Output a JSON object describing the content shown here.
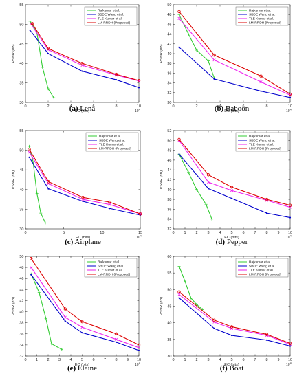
{
  "colors": {
    "rajkumar": "#33cc33",
    "sbde": "#0000cc",
    "tle": "#ee22ee",
    "lm": "#dd0000"
  },
  "chart_data": [
    {
      "type": "line",
      "panel_letter": "(a)",
      "panel_name": "Lena",
      "xlabel": "EC (bits)",
      "ylabel": "PSNR (dB)",
      "x_multiplier": "10",
      "x_multiplier_exp": "4",
      "xlim": [
        0,
        10
      ],
      "ylim": [
        30,
        55
      ],
      "xticks": [
        "0",
        "2",
        "4",
        "6",
        "8",
        "10"
      ],
      "yticks": [
        "30",
        "35",
        "40",
        "45",
        "50",
        "55"
      ],
      "legend_position": "top-right",
      "series": [
        {
          "name": "Rajkumar et al.",
          "color_key": "rajkumar",
          "points": [
            [
              0.4,
              50.8
            ],
            [
              1.0,
              48.0
            ],
            [
              1.5,
              39.0
            ],
            [
              2.0,
              33.5
            ],
            [
              2.5,
              31.2
            ]
          ]
        },
        {
          "name": "SBDE Wang et al.",
          "color_key": "sbde",
          "points": [
            [
              0.4,
              48.5
            ],
            [
              2.0,
              42.5
            ],
            [
              5.0,
              38.0
            ],
            [
              8.0,
              35.8
            ],
            [
              10.0,
              33.8
            ]
          ]
        },
        {
          "name": "TLE Kumar et al.",
          "color_key": "tle",
          "points": [
            [
              0.5,
              50.0
            ],
            [
              2.0,
              43.5
            ],
            [
              5.0,
              39.5
            ],
            [
              8.0,
              37.0
            ],
            [
              10.0,
              35.5
            ]
          ]
        },
        {
          "name": "LM-RRDH (Proposed)",
          "color_key": "lm",
          "points": [
            [
              0.6,
              50.2
            ],
            [
              2.0,
              43.8
            ],
            [
              5.0,
              40.0
            ],
            [
              8.0,
              37.2
            ],
            [
              10.0,
              35.6
            ]
          ]
        }
      ]
    },
    {
      "type": "line",
      "panel_letter": "(b)",
      "panel_name": "Baboon",
      "xlabel": "EC (bits)",
      "ylabel": "PSNR (dB)",
      "x_multiplier": "10",
      "x_multiplier_exp": "4",
      "xlim": [
        0,
        10
      ],
      "ylim": [
        30,
        50
      ],
      "xticks": [
        "0",
        "2",
        "4",
        "6",
        "8",
        "10"
      ],
      "yticks": [
        "30",
        "32",
        "34",
        "36",
        "38",
        "40",
        "42",
        "44",
        "46",
        "48",
        "50"
      ],
      "legend_position": "top-right",
      "series": [
        {
          "name": "Rajkumar et al.",
          "color_key": "rajkumar",
          "points": [
            [
              0.5,
              48.0
            ],
            [
              1.3,
              44.0
            ],
            [
              2.0,
              40.7
            ],
            [
              3.0,
              38.5
            ],
            [
              3.5,
              35.0
            ]
          ]
        },
        {
          "name": "SBDE Wang et al.",
          "color_key": "sbde",
          "points": [
            [
              0.5,
              41.3
            ],
            [
              3.5,
              34.8
            ],
            [
              7.5,
              32.3
            ],
            [
              10.0,
              31.0
            ]
          ]
        },
        {
          "name": "TLE Kumar et al.",
          "color_key": "tle",
          "points": [
            [
              0.5,
              47.2
            ],
            [
              3.5,
              38.7
            ],
            [
              7.5,
              34.2
            ],
            [
              10.0,
              31.5
            ]
          ]
        },
        {
          "name": "LM-RRDH (Proposed)",
          "color_key": "lm",
          "points": [
            [
              0.5,
              48.6
            ],
            [
              3.5,
              39.7
            ],
            [
              7.5,
              35.4
            ],
            [
              10.0,
              31.7
            ]
          ]
        }
      ]
    },
    {
      "type": "line",
      "panel_letter": "(c)",
      "panel_name": "Airplane",
      "xlabel": "EC (bits)",
      "ylabel": "PSNR (dB)",
      "x_multiplier": "10",
      "x_multiplier_exp": "4",
      "xlim": [
        0,
        15
      ],
      "ylim": [
        30,
        55
      ],
      "xticks": [
        "0",
        "5",
        "10",
        "15"
      ],
      "yticks": [
        "30",
        "35",
        "40",
        "45",
        "50",
        "55"
      ],
      "legend_position": "top-right",
      "series": [
        {
          "name": "Rajkumar et al.",
          "color_key": "rajkumar",
          "points": [
            [
              0.5,
              51.0
            ],
            [
              1.0,
              47.0
            ],
            [
              1.5,
              39.0
            ],
            [
              2.0,
              34.0
            ],
            [
              2.6,
              31.5
            ]
          ]
        },
        {
          "name": "SBDE Wang et al.",
          "color_key": "sbde",
          "points": [
            [
              0.5,
              48.2
            ],
            [
              3.0,
              40.2
            ],
            [
              7.5,
              37.0
            ],
            [
              11.0,
              35.2
            ],
            [
              15.0,
              33.5
            ]
          ]
        },
        {
          "name": "TLE Kumar et al.",
          "color_key": "tle",
          "points": [
            [
              0.5,
              49.5
            ],
            [
              3.0,
              41.5
            ],
            [
              7.5,
              37.5
            ],
            [
              11.0,
              36.2
            ],
            [
              15.0,
              33.8
            ]
          ]
        },
        {
          "name": "LM-RRDH (Proposed)",
          "color_key": "lm",
          "points": [
            [
              0.5,
              50.2
            ],
            [
              3.0,
              42.0
            ],
            [
              7.5,
              38.0
            ],
            [
              11.0,
              36.8
            ],
            [
              15.0,
              33.8
            ]
          ]
        }
      ]
    },
    {
      "type": "line",
      "panel_letter": "(d)",
      "panel_name": "Pepper",
      "xlabel": "EC (bits)",
      "ylabel": "PSNR (dB)",
      "x_multiplier": "10",
      "x_multiplier_exp": "4",
      "xlim": [
        0,
        10
      ],
      "ylim": [
        32,
        52
      ],
      "xticks": [
        "0",
        "1",
        "2",
        "3",
        "4",
        "5",
        "6",
        "7",
        "8",
        "9",
        "10"
      ],
      "yticks": [
        "32",
        "34",
        "36",
        "38",
        "40",
        "42",
        "44",
        "46",
        "48",
        "50",
        "52"
      ],
      "legend_position": "top-right",
      "series": [
        {
          "name": "Rajkumar et al.",
          "color_key": "rajkumar",
          "points": [
            [
              0.5,
              47.2
            ],
            [
              1.3,
              43.5
            ],
            [
              2.0,
              40.0
            ],
            [
              2.8,
              37.0
            ],
            [
              3.3,
              34.0
            ]
          ]
        },
        {
          "name": "SBDE Wang et al.",
          "color_key": "sbde",
          "points": [
            [
              0.5,
              47.2
            ],
            [
              3.0,
              40.2
            ],
            [
              5.0,
              38.2
            ],
            [
              8.0,
              35.2
            ],
            [
              10.0,
              34.3
            ]
          ]
        },
        {
          "name": "TLE Kumar et al.",
          "color_key": "tle",
          "points": [
            [
              0.5,
              50.0
            ],
            [
              3.0,
              41.5
            ],
            [
              5.0,
              39.8
            ],
            [
              8.0,
              37.8
            ],
            [
              10.0,
              36.4
            ]
          ]
        },
        {
          "name": "LM-RRDH (Proposed)",
          "color_key": "lm",
          "points": [
            [
              0.5,
              50.2
            ],
            [
              3.0,
              43.0
            ],
            [
              5.0,
              40.5
            ],
            [
              8.0,
              38.0
            ],
            [
              10.0,
              36.8
            ]
          ]
        }
      ]
    },
    {
      "type": "line",
      "panel_letter": "(e)",
      "panel_name": "Elaine",
      "xlabel": "EC (bits)",
      "ylabel": "PSNR (dB)",
      "x_multiplier": "10",
      "x_multiplier_exp": "4",
      "xlim": [
        0,
        10
      ],
      "ylim": [
        32,
        50
      ],
      "xticks": [
        "0",
        "1",
        "2",
        "3",
        "4",
        "5",
        "6",
        "7",
        "8",
        "9",
        "10"
      ],
      "yticks": [
        "32",
        "34",
        "36",
        "38",
        "40",
        "42",
        "44",
        "46",
        "48",
        "50"
      ],
      "legend_position": "top-right",
      "series": [
        {
          "name": "Rajkumar et al.",
          "color_key": "rajkumar",
          "points": [
            [
              0.5,
              46.8
            ],
            [
              1.2,
              43.5
            ],
            [
              1.8,
              38.8
            ],
            [
              2.3,
              34.2
            ],
            [
              3.2,
              33.2
            ]
          ]
        },
        {
          "name": "SBDE Wang et al.",
          "color_key": "sbde",
          "points": [
            [
              0.5,
              46.7
            ],
            [
              3.5,
              38.3
            ],
            [
              5.0,
              36.2
            ],
            [
              8.0,
              34.5
            ],
            [
              10.0,
              33.0
            ]
          ]
        },
        {
          "name": "TLE Kumar et al.",
          "color_key": "tle",
          "points": [
            [
              0.5,
              48.0
            ],
            [
              3.5,
              39.0
            ],
            [
              5.0,
              37.2
            ],
            [
              8.0,
              35.0
            ],
            [
              10.0,
              33.5
            ]
          ]
        },
        {
          "name": "LM-RRDH (Proposed)",
          "color_key": "lm",
          "points": [
            [
              0.5,
              49.6
            ],
            [
              3.5,
              40.5
            ],
            [
              5.0,
              38.2
            ],
            [
              8.0,
              36.0
            ],
            [
              10.0,
              34.0
            ]
          ]
        }
      ]
    },
    {
      "type": "line",
      "panel_letter": "(f)",
      "panel_name": "Boat",
      "xlabel": "EC (bits)",
      "ylabel": "PSNR (dB)",
      "x_multiplier": "10",
      "x_multiplier_exp": "4",
      "xlim": [
        0,
        10
      ],
      "ylim": [
        30,
        60
      ],
      "xticks": [
        "0",
        "1",
        "2",
        "3",
        "4",
        "5",
        "6",
        "7",
        "8",
        "9",
        "10"
      ],
      "yticks": [
        "30",
        "35",
        "40",
        "45",
        "50",
        "55",
        "60"
      ],
      "legend_position": "top-right",
      "series": [
        {
          "name": "Rajkumar et al.",
          "color_key": "rajkumar",
          "points": [
            [
              0.5,
              57.0
            ],
            [
              1.0,
              52.5
            ],
            [
              1.5,
              47.5
            ],
            [
              2.0,
              45.5
            ],
            [
              2.5,
              44.0
            ]
          ]
        },
        {
          "name": "SBDE Wang et al.",
          "color_key": "sbde",
          "points": [
            [
              0.5,
              47.5
            ],
            [
              3.5,
              38.3
            ],
            [
              5.0,
              36.2
            ],
            [
              8.0,
              34.8
            ],
            [
              10.0,
              33.0
            ]
          ]
        },
        {
          "name": "TLE Kumar et al.",
          "color_key": "tle",
          "points": [
            [
              0.5,
              48.5
            ],
            [
              3.5,
              40.2
            ],
            [
              5.0,
              38.3
            ],
            [
              8.0,
              36.2
            ],
            [
              10.0,
              33.5
            ]
          ]
        },
        {
          "name": "LM-RRDH (Proposed)",
          "color_key": "lm",
          "points": [
            [
              0.5,
              49.3
            ],
            [
              3.5,
              40.8
            ],
            [
              5.0,
              38.8
            ],
            [
              8.0,
              36.5
            ],
            [
              10.0,
              33.8
            ]
          ]
        }
      ]
    }
  ]
}
